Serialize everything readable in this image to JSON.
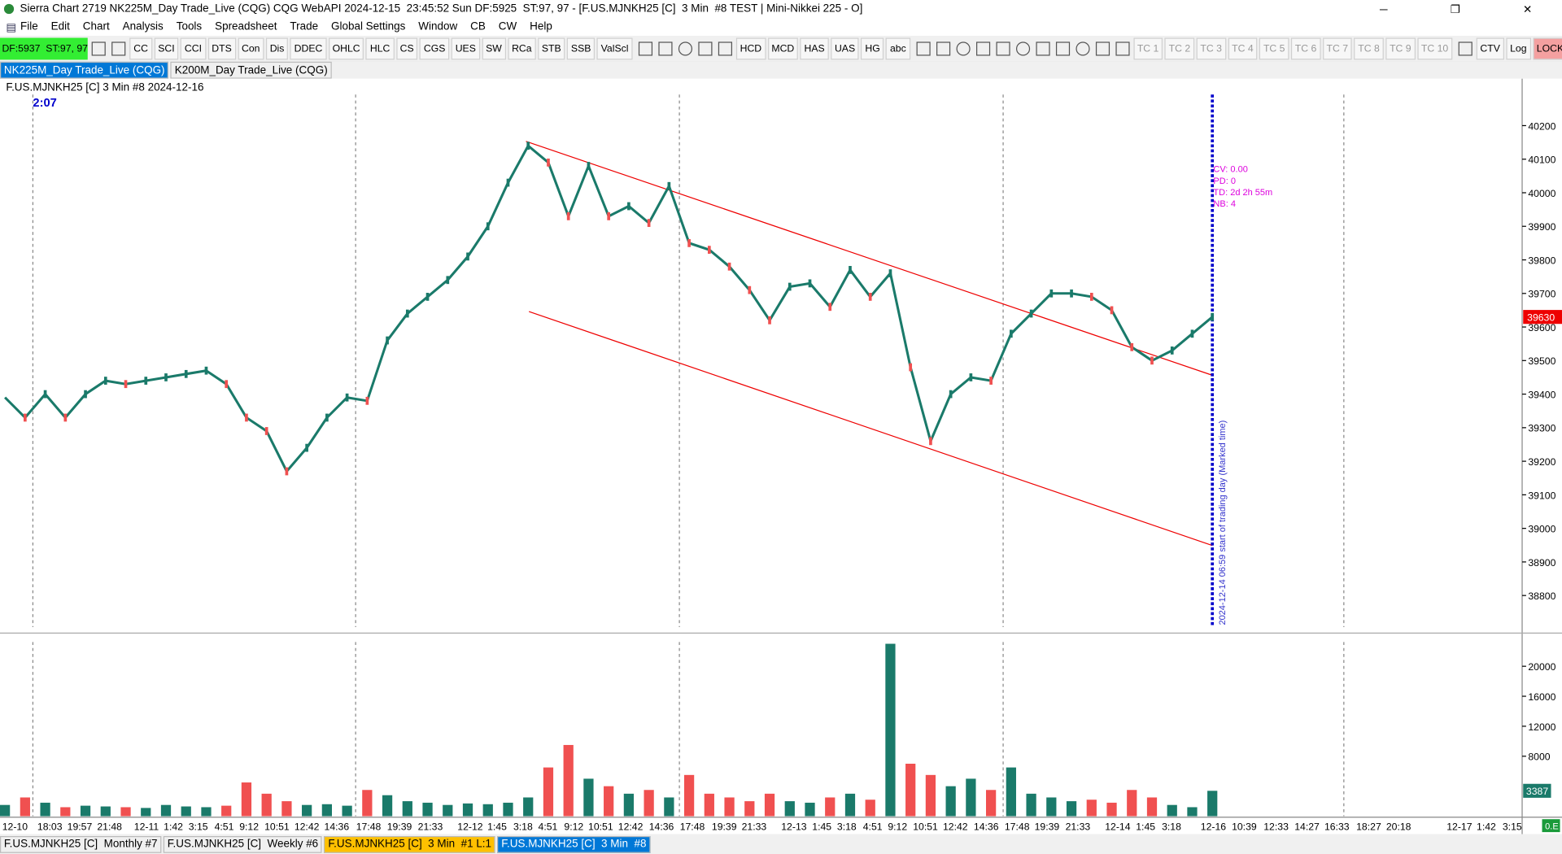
{
  "window": {
    "title": "Sierra Chart 2719 NK225M_Day Trade_Live (CQG) CQG WebAPI 2024-12-15  23:45:52 Sun DF:5925  ST:97, 97 - [F.US.MJNKH25 [C]  3 Min  #8 TEST | Mini-Nikkei 225 - O]"
  },
  "menu": [
    "File",
    "Edit",
    "Chart",
    "Analysis",
    "Tools",
    "Spreadsheet",
    "Trade",
    "Global Settings",
    "Window",
    "CB",
    "CW",
    "Help"
  ],
  "toolbar": {
    "status": "DF:5937  ST:97, 97",
    "buttons": [
      "CC",
      "SCI",
      "CCI",
      "DTS",
      "Con",
      "Dis",
      "DDEC",
      "OHLC",
      "HLC",
      "CS",
      "CGS",
      "UES",
      "SW",
      "RCa",
      "STB",
      "SSB",
      "ValScl",
      "HCD",
      "MCD",
      "HAS",
      "UAS",
      "HG",
      "abc",
      "TC 1",
      "TC 2",
      "TC 3",
      "TC 4",
      "TC 5",
      "TC 6",
      "TC 7",
      "TC 8",
      "TC 9",
      "TC 10",
      "CTV",
      "Log",
      "LOCK"
    ]
  },
  "chart_tabs": [
    "NK225M_Day Trade_Live (CQG)",
    "K200M_Day Trade_Live (CQG)"
  ],
  "chart": {
    "header": "F.US.MJNKH25 [C]  3 Min  #8 2024-12-16",
    "countdown": "2:07",
    "info": [
      "CV: 0.00",
      "PD: 0",
      "TD: 2d 2h 55m",
      "NB: 4"
    ],
    "vertical_note": "2024-12-14  06:59  start of trading day (Marked time)",
    "price": {
      "ylim": [
        38700,
        40340
      ],
      "yticks": [
        40200,
        40100,
        40000,
        39900,
        39800,
        39700,
        39600,
        39500,
        39400,
        39300,
        39200,
        39100,
        39000,
        38900,
        38800
      ],
      "values": [
        39390,
        39330,
        39400,
        39330,
        39400,
        39440,
        39430,
        39440,
        39450,
        39460,
        39470,
        39430,
        39330,
        39290,
        39170,
        39240,
        39330,
        39390,
        39380,
        39560,
        39640,
        39690,
        39740,
        39810,
        39900,
        40030,
        40140,
        40090,
        39930,
        40080,
        39930,
        39960,
        39910,
        40020,
        39850,
        39830,
        39780,
        39710,
        39620,
        39720,
        39730,
        39660,
        39770,
        39690,
        39760,
        39480,
        39260,
        39400,
        39450,
        39440,
        39580,
        39640,
        39700,
        39700,
        39690,
        39650,
        39540,
        39500,
        39530,
        39580,
        39630
      ]
    },
    "volume": {
      "ylim": [
        0,
        23900
      ],
      "yticks": [
        20000,
        16000,
        12000,
        8000
      ],
      "values": [
        1500,
        2500,
        1800,
        1200,
        1400,
        1300,
        1200,
        1100,
        1500,
        1300,
        1200,
        1400,
        4500,
        3000,
        2000,
        1500,
        1600,
        1400,
        3500,
        2800,
        2000,
        1800,
        1500,
        1700,
        1600,
        1800,
        2500,
        6500,
        9500,
        5000,
        4000,
        3000,
        3500,
        2500,
        5500,
        3000,
        2500,
        2000,
        3000,
        2000,
        1800,
        2500,
        3000,
        2200,
        23000,
        7000,
        5500,
        4000,
        5000,
        3500,
        6500,
        3000,
        2500,
        2000,
        2200,
        1800,
        3500,
        2500,
        1500,
        1200,
        3387
      ]
    },
    "time_labels": [
      "12-10",
      "18:03",
      "19:57",
      "21:48",
      "12-11",
      "1:42",
      "3:15",
      "4:51",
      "9:12",
      "10:51",
      "12:42",
      "14:36",
      "17:48",
      "19:39",
      "21:33",
      "12-12",
      "1:45",
      "3:18",
      "4:51",
      "9:12",
      "10:51",
      "12:42",
      "14:36",
      "17:48",
      "19:39",
      "21:33",
      "12-13",
      "1:45",
      "3:18",
      "4:51",
      "9:12",
      "10:51",
      "12:42",
      "14:36",
      "17:48",
      "19:39",
      "21:33",
      "12-14",
      "1:45",
      "3:18",
      "12-16",
      "10:39",
      "12:33",
      "14:27",
      "16:33",
      "18:27",
      "20:18",
      "12-17",
      "1:42",
      "3:15"
    ]
  },
  "bottom_tabs": [
    "F.US.MJNKH25 [C]  Monthly #7",
    "F.US.MJNKH25 [C]  Weekly #6",
    "F.US.MJNKH25 [C]  3 Min  #1 L:1",
    "F.US.MJNKH25 [C]  3 Min  #8"
  ],
  "corner": "0.E"
}
